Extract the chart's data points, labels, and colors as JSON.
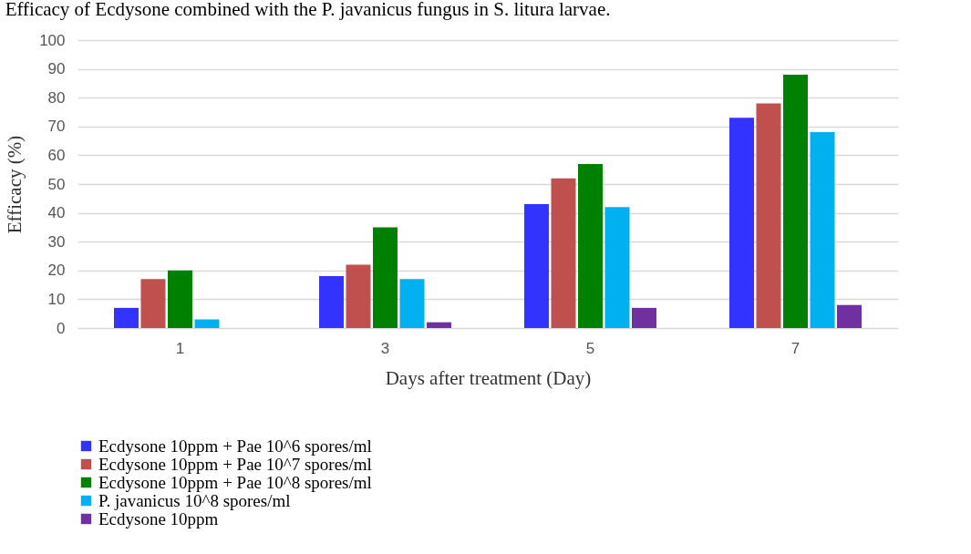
{
  "chart_data": {
    "type": "bar",
    "title": "Efficacy of Ecdysone combined with the P. javanicus fungus in S. litura larvae.",
    "xlabel": "Days after treatment (Day)",
    "ylabel": "Efficacy (%)",
    "categories": [
      "1",
      "3",
      "5",
      "7"
    ],
    "series": [
      {
        "name": "Ecdysone 10ppm + Pae 10^6 spores/ml",
        "color": "#3333ff",
        "values": [
          7,
          18,
          43,
          73
        ]
      },
      {
        "name": "Ecdysone 10ppm + Pae 10^7 spores/ml",
        "color": "#c0504d",
        "values": [
          17,
          22,
          52,
          78
        ]
      },
      {
        "name": "Ecdysone 10ppm + Pae 10^8 spores/ml",
        "color": "#008000",
        "values": [
          20,
          35,
          57,
          88
        ]
      },
      {
        "name": " P. javanicus 10^8 spores/ml",
        "color": "#00b0f0",
        "values": [
          3,
          17,
          42,
          68
        ]
      },
      {
        "name": "Ecdysone 10ppm",
        "color": "#7030a0",
        "values": [
          0,
          2,
          7,
          8
        ]
      }
    ],
    "ylim": [
      0,
      100
    ],
    "yticks": [
      0,
      10,
      20,
      30,
      40,
      50,
      60,
      70,
      80,
      90,
      100
    ],
    "grid": "y",
    "legend": "bottom"
  }
}
